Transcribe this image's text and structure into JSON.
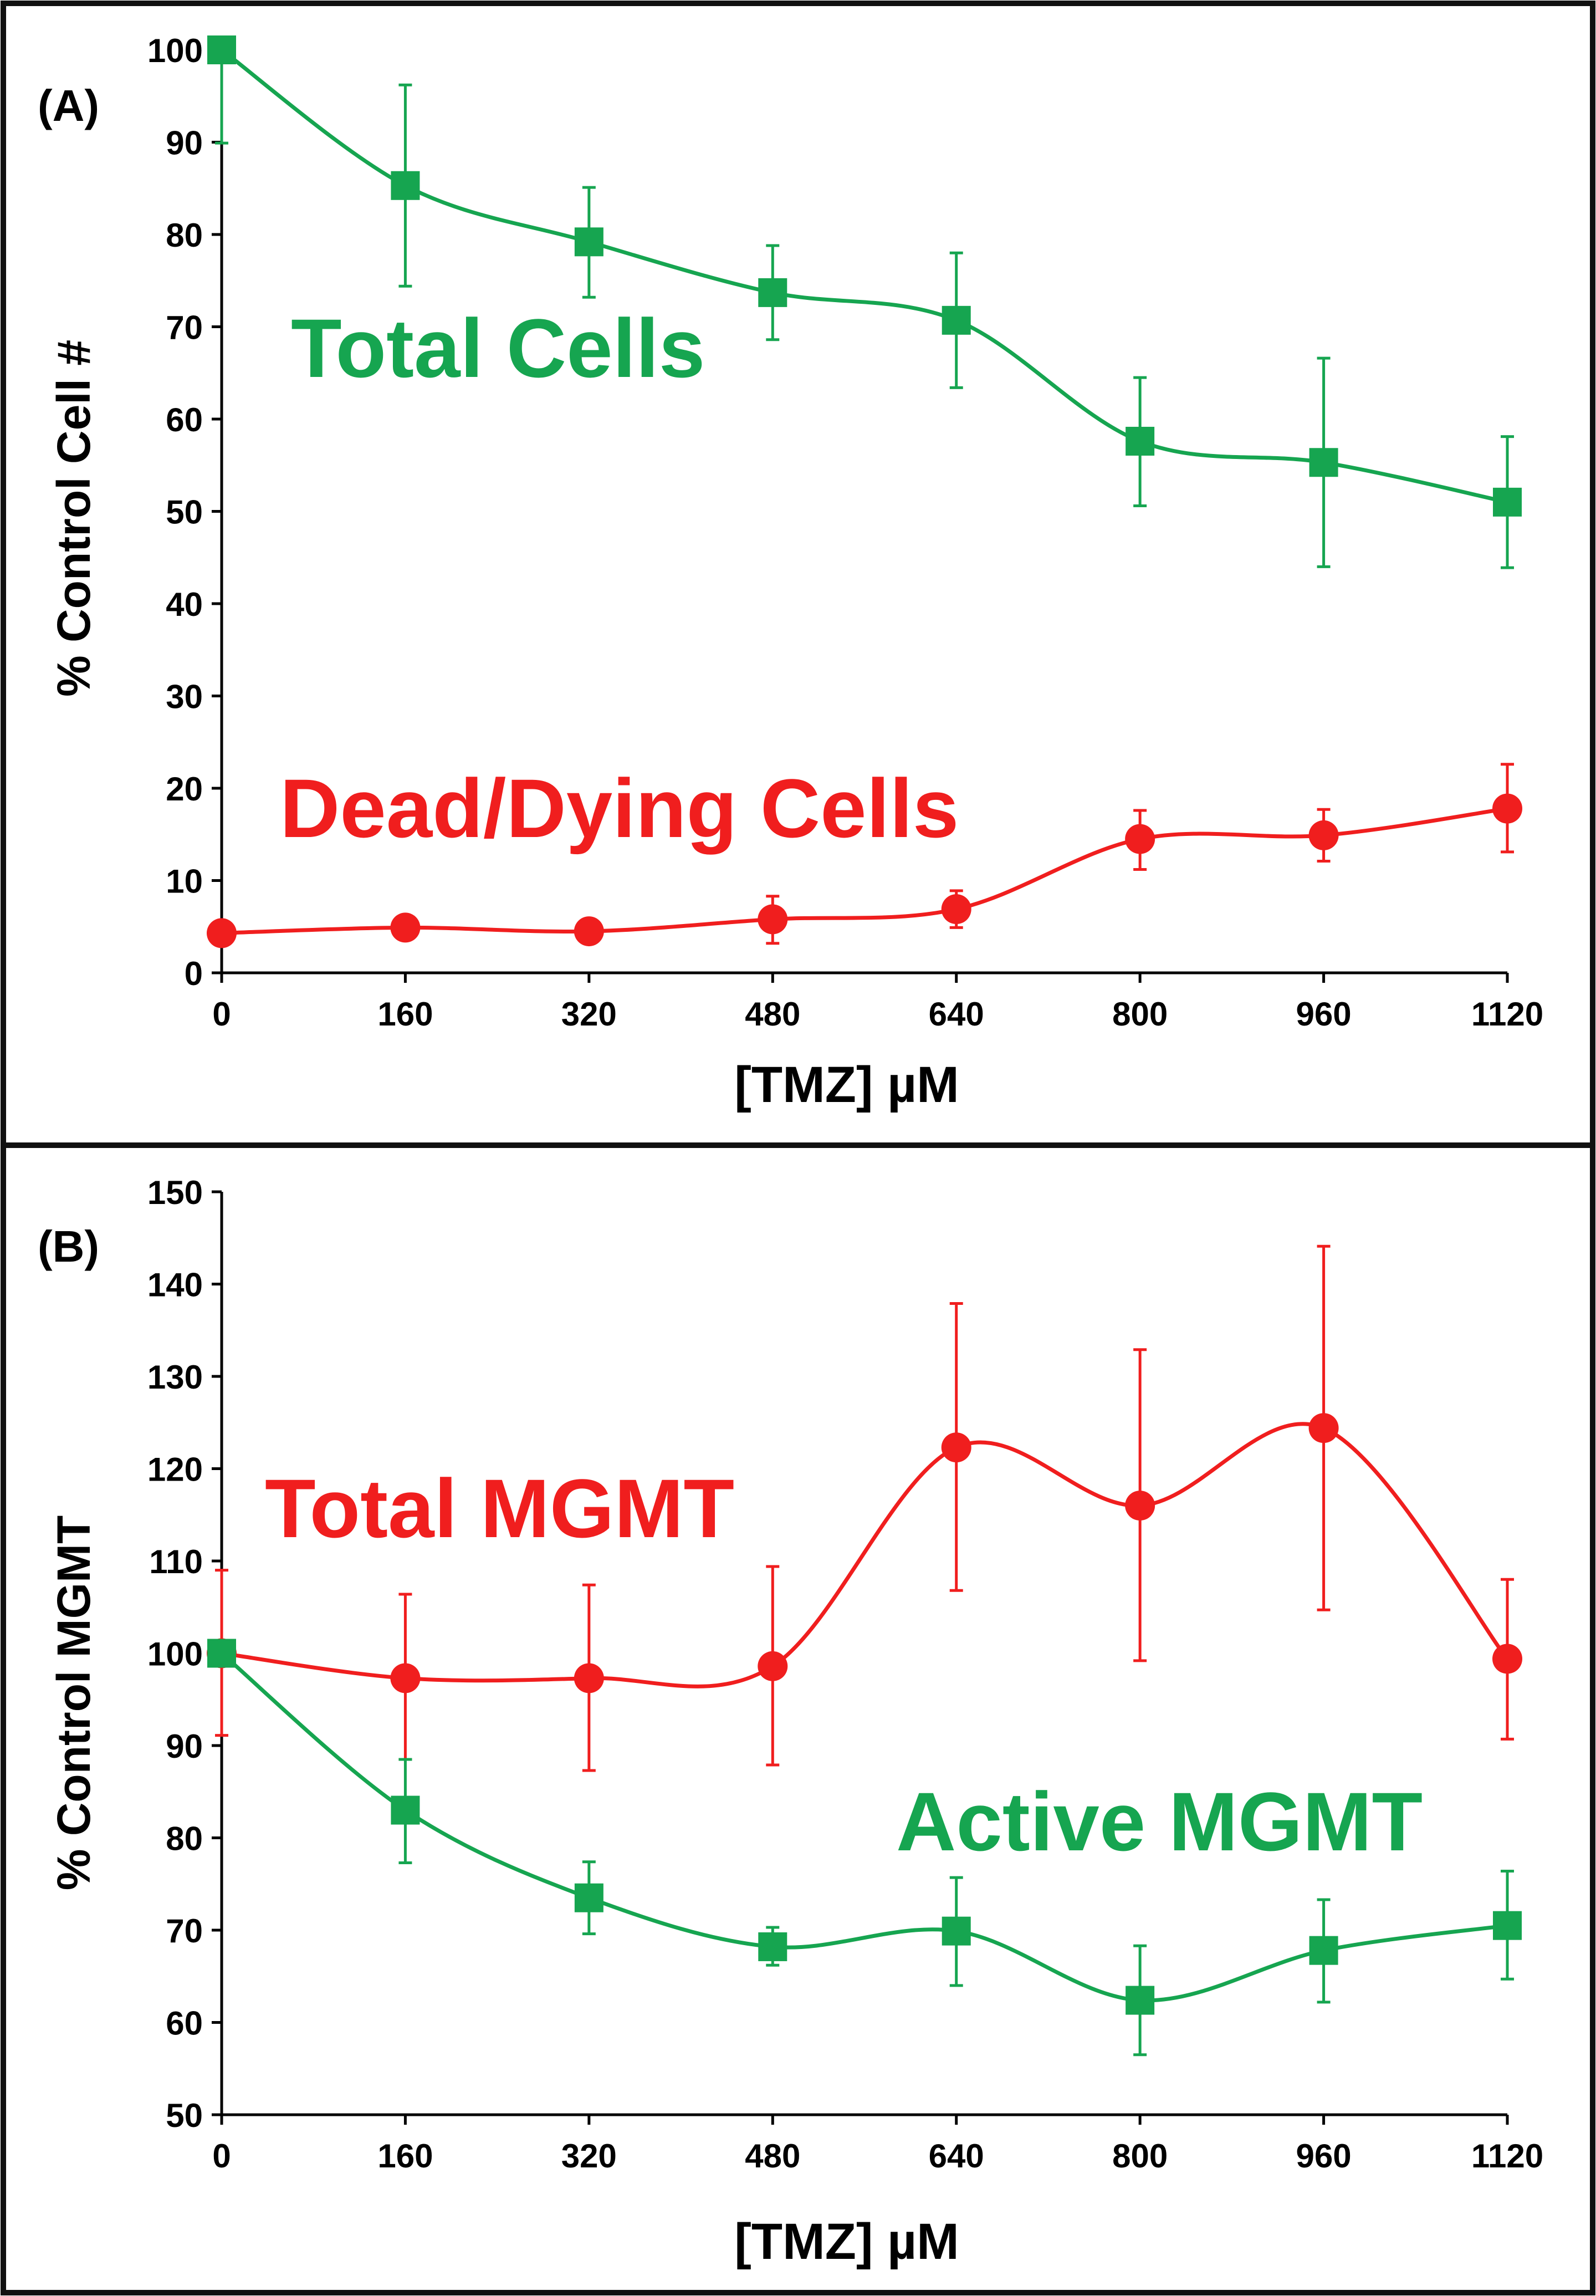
{
  "colors": {
    "green": "#16a550",
    "red": "#f01e1e",
    "axis": "#000000",
    "frame": "#111111"
  },
  "chart_data": [
    {
      "panel_label": "(A)",
      "type": "line",
      "xlabel": "[TMZ] µM",
      "ylabel": "% Control Cell #",
      "xlim": [
        0,
        1120
      ],
      "ylim": [
        0,
        100
      ],
      "x_ticks": [
        0,
        160,
        320,
        480,
        640,
        800,
        960,
        1120
      ],
      "y_ticks": [
        0,
        10,
        20,
        30,
        40,
        50,
        60,
        70,
        80,
        90,
        100
      ],
      "grid": false,
      "series": [
        {
          "name": "Total Cells",
          "color": "#16a550",
          "marker": "square",
          "x": [
            0,
            160,
            320,
            480,
            640,
            800,
            960,
            1120
          ],
          "values": [
            100,
            85.3,
            79.2,
            73.7,
            70.7,
            57.6,
            55.3,
            51.0
          ],
          "err_low": [
            89.9,
            74.4,
            73.2,
            68.6,
            63.4,
            50.6,
            44.0,
            43.9
          ],
          "err_high": [
            100.0,
            96.2,
            85.1,
            78.8,
            78.0,
            64.5,
            66.6,
            58.1
          ]
        },
        {
          "name": "Dead/Dying Cells",
          "color": "#f01e1e",
          "marker": "circle",
          "x": [
            0,
            160,
            320,
            480,
            640,
            800,
            960,
            1120
          ],
          "values": [
            4.3,
            4.9,
            4.5,
            5.8,
            6.9,
            14.5,
            14.9,
            17.8
          ],
          "err_low": [
            4.3,
            4.9,
            4.5,
            3.2,
            4.9,
            11.2,
            12.1,
            13.1
          ],
          "err_high": [
            4.3,
            4.9,
            4.5,
            8.3,
            8.9,
            17.6,
            17.7,
            22.6
          ]
        }
      ]
    },
    {
      "panel_label": "(B)",
      "type": "line",
      "xlabel": "[TMZ] µM",
      "ylabel": "% Control MGMT",
      "xlim": [
        0,
        1120
      ],
      "ylim": [
        50,
        150
      ],
      "x_ticks": [
        0,
        160,
        320,
        480,
        640,
        800,
        960,
        1120
      ],
      "y_ticks": [
        50,
        60,
        70,
        80,
        90,
        100,
        110,
        120,
        130,
        140,
        150
      ],
      "grid": false,
      "series": [
        {
          "name": "Total MGMT",
          "color": "#f01e1e",
          "marker": "circle",
          "x": [
            0,
            160,
            320,
            480,
            640,
            800,
            960,
            1120
          ],
          "values": [
            100.0,
            97.3,
            97.3,
            98.6,
            122.3,
            116.0,
            124.4,
            99.4
          ],
          "err_low": [
            91.1,
            88.5,
            87.3,
            87.9,
            106.8,
            99.2,
            104.7,
            90.7
          ],
          "err_high": [
            109.0,
            106.4,
            107.4,
            109.4,
            137.9,
            132.9,
            144.1,
            108.0
          ]
        },
        {
          "name": "Active MGMT",
          "color": "#16a550",
          "marker": "square",
          "x": [
            0,
            160,
            320,
            480,
            640,
            800,
            960,
            1120
          ],
          "values": [
            100.0,
            83.0,
            73.5,
            68.2,
            69.9,
            62.4,
            67.8,
            70.5
          ],
          "err_low": [
            100.0,
            77.3,
            69.6,
            66.2,
            64.0,
            56.5,
            62.2,
            64.7
          ],
          "err_high": [
            100.0,
            88.5,
            77.4,
            70.3,
            75.7,
            68.3,
            73.3,
            76.4
          ]
        }
      ]
    }
  ],
  "series_labels": {
    "a_total_cells": "Total Cells",
    "a_dead_cells": "Dead/Dying Cells",
    "b_total_mgmt": "Total MGMT",
    "b_active_mgmt": "Active MGMT"
  }
}
